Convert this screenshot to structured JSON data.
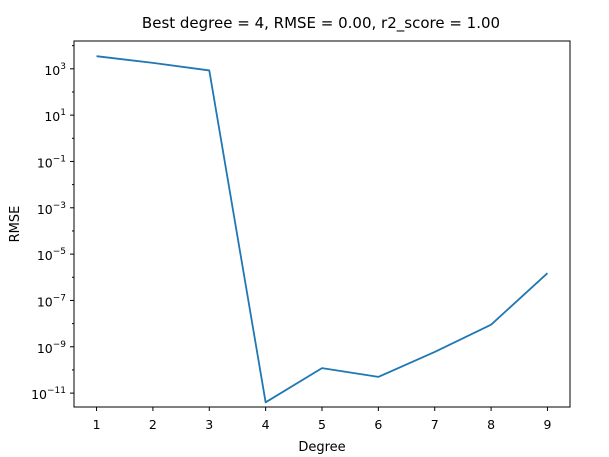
{
  "chart_data": {
    "type": "line",
    "title": "Best degree = 4, RMSE = 0.00, r2_score = 1.00",
    "xlabel": "Degree",
    "ylabel": "RMSE",
    "yscale": "log",
    "xlim": [
      0.6,
      9.4
    ],
    "ylim_log10": [
      -11.6,
      4.2
    ],
    "grid": false,
    "x": [
      1,
      2,
      3,
      4,
      5,
      6,
      7,
      8,
      9
    ],
    "series": [
      {
        "color": "#1f77b4",
        "y": [
          3500,
          1800,
          850,
          4e-12,
          1.2e-10,
          5e-11,
          6e-10,
          9e-09,
          1.5e-06
        ]
      }
    ],
    "x_ticks": [
      1,
      2,
      3,
      4,
      5,
      6,
      7,
      8,
      9
    ],
    "y_ticks": [
      {
        "exp": 3,
        "base": "10",
        "sup": "3"
      },
      {
        "exp": 1,
        "base": "10",
        "sup": "1"
      },
      {
        "exp": -1,
        "base": "10",
        "sup": "−1"
      },
      {
        "exp": -3,
        "base": "10",
        "sup": "−3"
      },
      {
        "exp": -5,
        "base": "10",
        "sup": "−5"
      },
      {
        "exp": -7,
        "base": "10",
        "sup": "−7"
      },
      {
        "exp": -9,
        "base": "10",
        "sup": "−9"
      },
      {
        "exp": -11,
        "base": "10",
        "sup": "−11"
      }
    ]
  }
}
